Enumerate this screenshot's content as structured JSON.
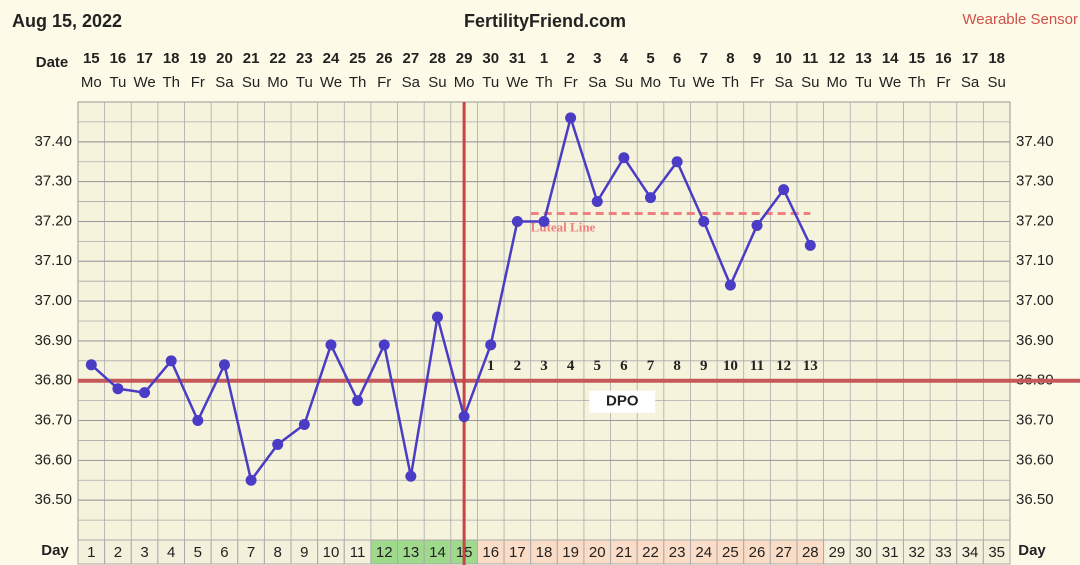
{
  "chart_data": {
    "type": "line",
    "title": "FertilityFriend.com",
    "date_label": "Aug 15, 2022",
    "source_label": "Wearable Sensor",
    "date_axis_label": "Date",
    "day_axis_label": "Day",
    "dates": [
      "15",
      "16",
      "17",
      "18",
      "19",
      "20",
      "21",
      "22",
      "23",
      "24",
      "25",
      "26",
      "27",
      "28",
      "29",
      "30",
      "31",
      "1",
      "2",
      "3",
      "4",
      "5",
      "6",
      "7",
      "8",
      "9",
      "10",
      "11",
      "12",
      "13",
      "14",
      "15",
      "16",
      "17",
      "18"
    ],
    "weekdays": [
      "Mo",
      "Tu",
      "We",
      "Th",
      "Fr",
      "Sa",
      "Su",
      "Mo",
      "Tu",
      "We",
      "Th",
      "Fr",
      "Sa",
      "Su",
      "Mo",
      "Tu",
      "We",
      "Th",
      "Fr",
      "Sa",
      "Su",
      "Mo",
      "Tu",
      "We",
      "Th",
      "Fr",
      "Sa",
      "Su",
      "Mo",
      "Tu",
      "We",
      "Th",
      "Fr",
      "Sa",
      "Su"
    ],
    "days": [
      1,
      2,
      3,
      4,
      5,
      6,
      7,
      8,
      9,
      10,
      11,
      12,
      13,
      14,
      15,
      16,
      17,
      18,
      19,
      20,
      21,
      22,
      23,
      24,
      25,
      26,
      27,
      28,
      29,
      30,
      31,
      32,
      33,
      34,
      35
    ],
    "series": [
      {
        "name": "Temperature",
        "color": "#4a3cc4",
        "values": [
          36.84,
          36.78,
          36.77,
          36.85,
          36.7,
          36.84,
          36.55,
          36.64,
          36.69,
          36.89,
          36.75,
          36.89,
          36.56,
          36.96,
          36.71,
          36.89,
          37.2,
          37.2,
          37.46,
          37.25,
          37.36,
          37.26,
          37.35,
          37.2,
          37.04,
          37.19,
          37.28,
          37.14,
          null,
          null,
          null,
          null,
          null,
          null,
          null
        ]
      }
    ],
    "ylim": [
      36.4,
      37.5
    ],
    "yticks": [
      {
        "value": 36.5,
        "label": "36.50"
      },
      {
        "value": 36.6,
        "label": "36.60"
      },
      {
        "value": 36.7,
        "label": "36.70"
      },
      {
        "value": 36.8,
        "label": "36.80"
      },
      {
        "value": 36.9,
        "label": "36.90"
      },
      {
        "value": 37.0,
        "label": "37.00"
      },
      {
        "value": 37.1,
        "label": "37.10"
      },
      {
        "value": 37.2,
        "label": "37.20"
      },
      {
        "value": 37.3,
        "label": "37.30"
      },
      {
        "value": 37.4,
        "label": "37.40"
      }
    ],
    "grid": true,
    "coverline": 36.8,
    "coverline_color": "#c5595a",
    "ovulation_day": 15,
    "ovulation_color": "#c8434a",
    "luteal_line": 37.22,
    "luteal_line_label": "Luteal Line",
    "luteal_color": "#ee8080",
    "dpo": [
      1,
      2,
      3,
      4,
      5,
      6,
      7,
      8,
      9,
      10,
      11,
      12,
      13
    ],
    "dpo_label": "DPO",
    "fertile_days": [
      12,
      13,
      14,
      15
    ],
    "fertile_color": "#9fd98c",
    "post_ovulation_color": "#fbdcc6"
  }
}
